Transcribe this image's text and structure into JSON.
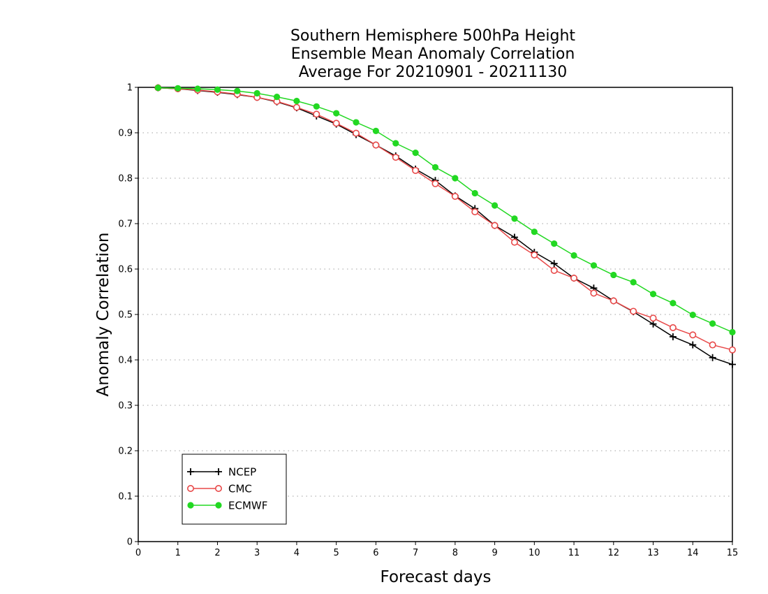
{
  "chart_data": {
    "type": "line",
    "title": [
      "Southern Hemisphere 500hPa Height",
      "Ensemble Mean Anomaly Correlation",
      "Average For 20210901 - 20211130"
    ],
    "xlabel": "Forecast days",
    "ylabel": "Anomaly Correlation",
    "xlim": [
      0,
      15
    ],
    "ylim": [
      0,
      1
    ],
    "x_ticks": [
      "0",
      "1",
      "2",
      "3",
      "4",
      "5",
      "6",
      "7",
      "8",
      "9",
      "10",
      "11",
      "12",
      "13",
      "14",
      "15"
    ],
    "y_ticks": [
      "0",
      "0.1",
      "0.2",
      "0.3",
      "0.4",
      "0.5",
      "0.6",
      "0.7",
      "0.8",
      "0.9",
      "1"
    ],
    "grid": "horizontal dotted",
    "legend_position": "bottom-left",
    "x": [
      0.5,
      1,
      1.5,
      2,
      2.5,
      3,
      3.5,
      4,
      4.5,
      5,
      5.5,
      6,
      6.5,
      7,
      7.5,
      8,
      8.5,
      9,
      9.5,
      10,
      10.5,
      11,
      11.5,
      12,
      12.5,
      13,
      13.5,
      14,
      14.5,
      15
    ],
    "series": [
      {
        "name": "NCEP",
        "color": "#000000",
        "marker": "plus",
        "values": [
          0.999,
          0.997,
          0.993,
          0.989,
          0.984,
          0.978,
          0.968,
          0.955,
          0.937,
          0.919,
          0.896,
          0.873,
          0.849,
          0.82,
          0.795,
          0.761,
          0.733,
          0.696,
          0.67,
          0.637,
          0.612,
          0.58,
          0.558,
          0.53,
          0.506,
          0.479,
          0.451,
          0.433,
          0.405,
          0.39
        ]
      },
      {
        "name": "CMC",
        "color": "#e84848",
        "marker": "open-circle",
        "values": [
          0.999,
          0.997,
          0.994,
          0.99,
          0.985,
          0.978,
          0.969,
          0.956,
          0.941,
          0.921,
          0.899,
          0.873,
          0.846,
          0.817,
          0.788,
          0.76,
          0.726,
          0.696,
          0.659,
          0.631,
          0.597,
          0.58,
          0.547,
          0.53,
          0.507,
          0.492,
          0.471,
          0.455,
          0.433,
          0.422
        ]
      },
      {
        "name": "ECMWF",
        "color": "#22d822",
        "marker": "filled-circle",
        "values": [
          0.999,
          0.998,
          0.997,
          0.995,
          0.992,
          0.987,
          0.979,
          0.97,
          0.958,
          0.943,
          0.923,
          0.904,
          0.877,
          0.856,
          0.824,
          0.8,
          0.767,
          0.74,
          0.711,
          0.682,
          0.656,
          0.63,
          0.608,
          0.587,
          0.571,
          0.545,
          0.525,
          0.499,
          0.48,
          0.461
        ]
      }
    ]
  }
}
